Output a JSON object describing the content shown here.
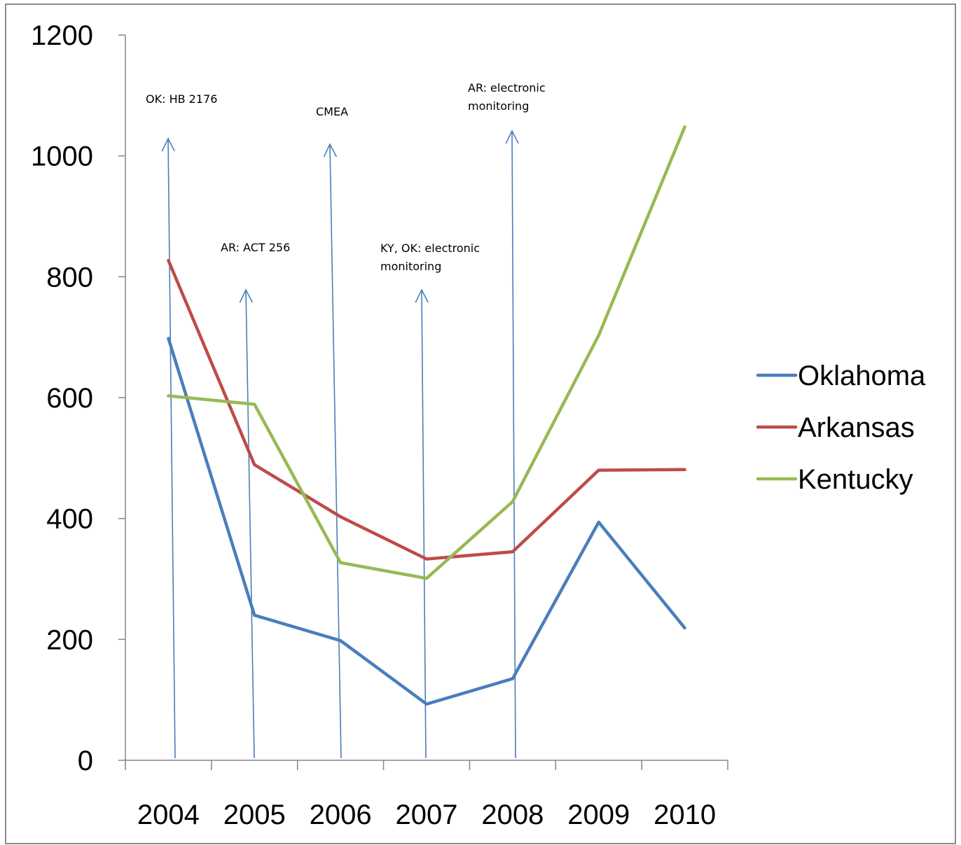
{
  "chart_data": {
    "type": "line",
    "categories": [
      "2004",
      "2005",
      "2006",
      "2007",
      "2008",
      "2009",
      "2010"
    ],
    "ylim": [
      0,
      1200
    ],
    "yticks": [
      "0",
      "200",
      "400",
      "600",
      "800",
      "1000",
      "1200"
    ],
    "grid": false,
    "legend_position": "right",
    "series": [
      {
        "name": "Oklahoma",
        "color": "#4a7ebb",
        "values": [
          698,
          240,
          198,
          93,
          135,
          394,
          219
        ]
      },
      {
        "name": "Arkansas",
        "color": "#be4b48",
        "values": [
          827,
          489,
          403,
          333,
          345,
          480,
          481
        ]
      },
      {
        "name": "Kentucky",
        "color": "#98b954",
        "values": [
          603,
          589,
          327,
          301,
          428,
          703,
          1048
        ]
      }
    ],
    "annotations": [
      {
        "lines": [
          "OK: HB 2176"
        ],
        "category": "2004"
      },
      {
        "lines": [
          "AR: ACT 256"
        ],
        "category": "2005"
      },
      {
        "lines": [
          "CMEA"
        ],
        "category": "2006"
      },
      {
        "lines": [
          "KY, OK: electronic",
          "monitoring"
        ],
        "category": "2007"
      },
      {
        "lines": [
          "AR: electronic",
          "monitoring"
        ],
        "category": "2008"
      }
    ]
  }
}
